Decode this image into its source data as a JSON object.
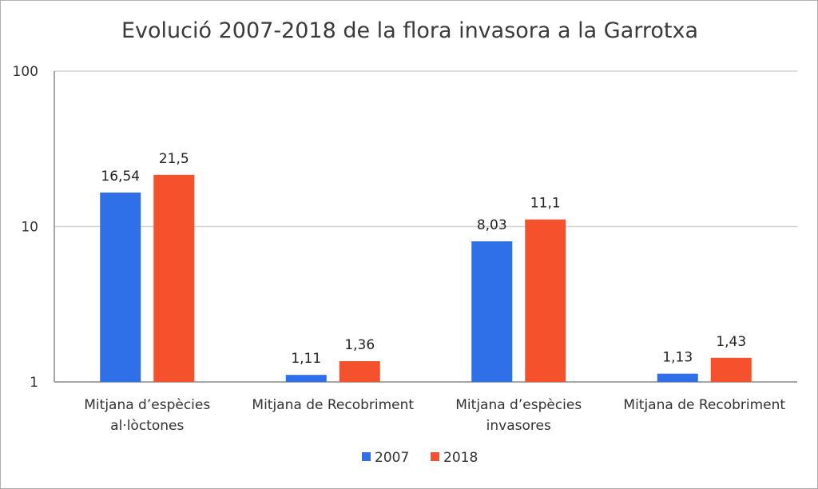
{
  "chart_data": {
    "type": "bar",
    "title": "Evolució 2007-2018 de la flora invasora a la Garrotxa",
    "scale": "log",
    "ylim": [
      1,
      100
    ],
    "yticks": [
      1,
      10,
      100
    ],
    "ytick_labels": [
      "1",
      "10",
      "100"
    ],
    "grid": true,
    "legend_position": "bottom",
    "categories": [
      [
        "Mitjana d’espècies",
        "al·lòctones"
      ],
      [
        "Mitjana de Recobriment"
      ],
      [
        "Mitjana d’espècies",
        "invasores"
      ],
      [
        "Mitjana de Recobriment"
      ]
    ],
    "series": [
      {
        "name": "2007",
        "color": "#2f6fe8",
        "values": [
          16.54,
          1.11,
          8.03,
          1.13
        ],
        "labels": [
          "16,54",
          "1,11",
          "8,03",
          "1,13"
        ]
      },
      {
        "name": "2018",
        "color": "#f4512c",
        "values": [
          21.5,
          1.36,
          11.1,
          1.43
        ],
        "labels": [
          "21,5",
          "1,36",
          "11,1",
          "1,43"
        ]
      }
    ]
  }
}
